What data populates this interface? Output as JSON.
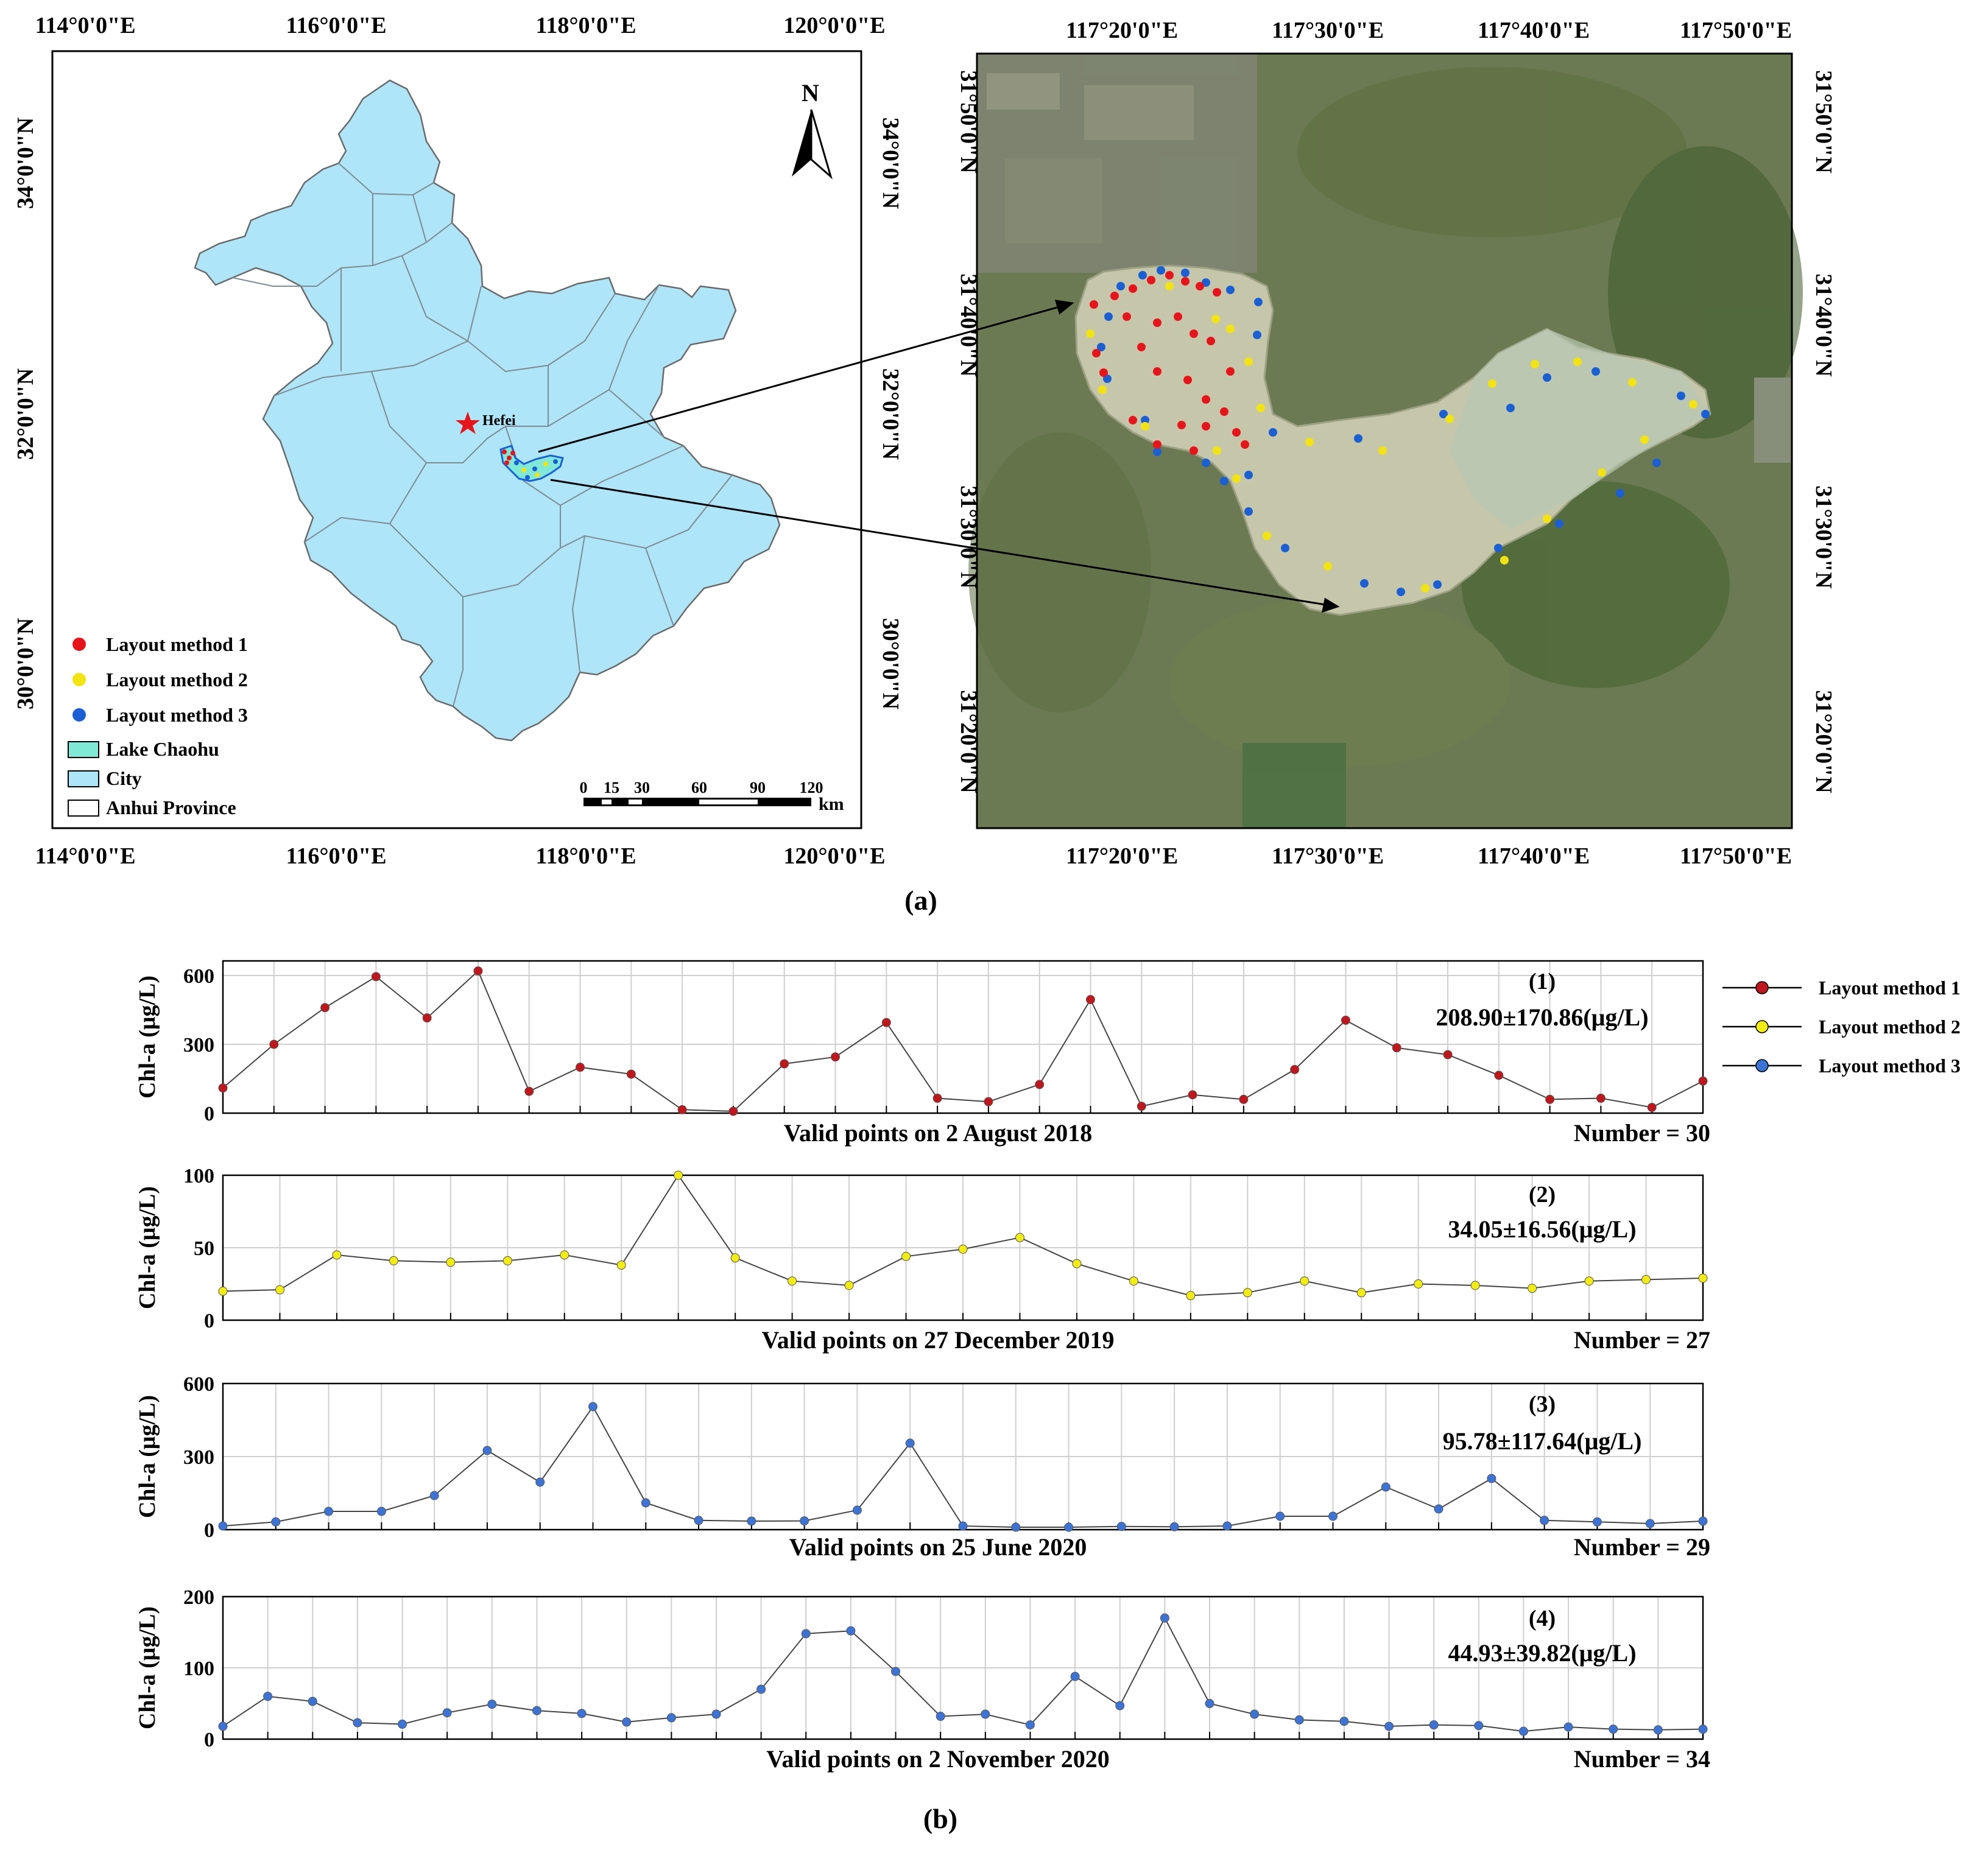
{
  "panel_a": {
    "label": "(a)",
    "province_map": {
      "x_ticks": [
        "114°0'0\"E",
        "116°0'0\"E",
        "118°0'0\"E",
        "120°0'0\"E"
      ],
      "y_ticks": [
        "34°0'0\"N",
        "32°0'0\"N",
        "30°0'0\"N"
      ],
      "north_label": "N",
      "city_label": "Hefei",
      "scale_ticks": [
        "0",
        "15",
        "30",
        "60",
        "90",
        "120"
      ],
      "scale_unit": "km",
      "legend": [
        {
          "label": "Layout method 1",
          "kind": "dot",
          "color": "#e8141b"
        },
        {
          "label": "Layout method 2",
          "kind": "dot",
          "color": "#f2e311"
        },
        {
          "label": "Layout method 3",
          "kind": "dot",
          "color": "#1a5fd6"
        },
        {
          "label": "Lake Chaohu",
          "kind": "box",
          "color": "#7fe9d6"
        },
        {
          "label": "City",
          "kind": "box",
          "color": "#aee5f8"
        },
        {
          "label": "Anhui Province",
          "kind": "box",
          "color": "#ffffff"
        }
      ]
    },
    "lake_map": {
      "x_ticks": [
        "117°20'0\"E",
        "117°30'0\"E",
        "117°40'0\"E",
        "117°50'0\"E"
      ],
      "y_ticks": [
        "31°50'0\"N",
        "31°40'0\"N",
        "31°30'0\"N",
        "31°20'0\"N"
      ]
    }
  },
  "panel_b": {
    "label": "(b)",
    "ylabel": "Chl-a (μg/L)",
    "legend": [
      {
        "label": "Layout method 1",
        "color": "#c0161c"
      },
      {
        "label": "Layout method 2",
        "color": "#f2ec11"
      },
      {
        "label": "Layout method 3",
        "color": "#3c73d6"
      }
    ]
  },
  "chart_data": [
    {
      "type": "line",
      "id": "(1)",
      "stat": "208.90±170.86(μg/L)",
      "xlabel": "Valid points on 2 August 2018",
      "count_label": "Number = 30",
      "ylabel": "Chl-a (μg/L)",
      "ylim": [
        0,
        700
      ],
      "yticks": [
        0,
        300,
        600
      ],
      "series": [
        {
          "name": "Layout method 1",
          "color": "#c0161c",
          "values": [
            110,
            300,
            460,
            595,
            415,
            620,
            95,
            200,
            170,
            15,
            8,
            215,
            245,
            395,
            65,
            50,
            125,
            495,
            30,
            80,
            60,
            190,
            405,
            285,
            255,
            165,
            60,
            65,
            25,
            140
          ]
        }
      ]
    },
    {
      "type": "line",
      "id": "(2)",
      "stat": "34.05±16.56(μg/L)",
      "xlabel": "Valid points on 27 December 2019",
      "count_label": "Number = 27",
      "ylabel": "Chl-a (μg/L)",
      "ylim": [
        0,
        100
      ],
      "yticks": [
        0,
        50,
        100
      ],
      "series": [
        {
          "name": "Layout method 2",
          "color": "#f2ec11",
          "values": [
            20,
            21,
            45,
            41,
            40,
            41,
            45,
            38,
            100,
            43,
            27,
            24,
            44,
            49,
            57,
            39,
            27,
            17,
            19,
            27,
            19,
            25,
            24,
            22,
            27,
            28,
            29
          ]
        }
      ]
    },
    {
      "type": "line",
      "id": "(3)",
      "stat": "95.78±117.64(μg/L)",
      "xlabel": "Valid points on 25 June 2020",
      "count_label": "Number = 29",
      "ylabel": "Chl-a (μg/L)",
      "ylim": [
        0,
        600
      ],
      "yticks": [
        0,
        300,
        600
      ],
      "series": [
        {
          "name": "Layout method 3",
          "color": "#3c73d6",
          "values": [
            15,
            32,
            75,
            75,
            140,
            325,
            195,
            505,
            110,
            38,
            35,
            36,
            80,
            355,
            15,
            10,
            10,
            13,
            12,
            15,
            55,
            55,
            175,
            85,
            210,
            38,
            32,
            25,
            35
          ]
        }
      ]
    },
    {
      "type": "line",
      "id": "(4)",
      "stat": "44.93±39.82(μg/L)",
      "xlabel": "Valid points on 2 November 2020",
      "count_label": "Number = 34",
      "ylabel": "Chl-a (μg/L)",
      "ylim": [
        0,
        200
      ],
      "yticks": [
        0,
        100,
        200
      ],
      "series": [
        {
          "name": "Layout method 3",
          "color": "#3c73d6",
          "values": [
            18,
            60,
            53,
            23,
            21,
            37,
            49,
            40,
            36,
            24,
            30,
            35,
            70,
            148,
            152,
            95,
            32,
            35,
            20,
            88,
            47,
            170,
            50,
            35,
            27,
            25,
            18,
            20,
            19,
            11,
            17,
            14,
            13,
            14
          ]
        }
      ]
    }
  ]
}
